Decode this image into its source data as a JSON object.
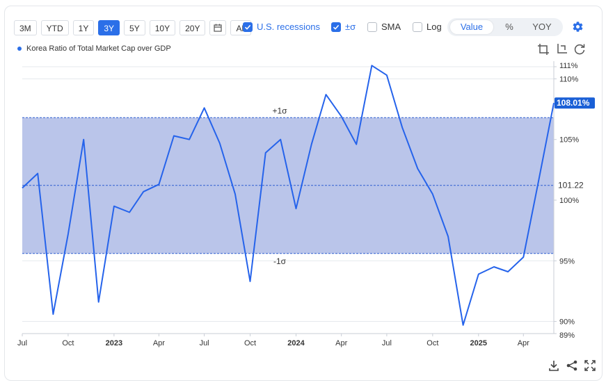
{
  "toolbar": {
    "ranges": [
      "3M",
      "YTD",
      "1Y",
      "3Y",
      "5Y",
      "10Y",
      "20Y"
    ],
    "active_range": "3Y",
    "all_label": "All",
    "calendar_icon": "calendar-icon"
  },
  "options": {
    "recessions": {
      "label": "U.S. recessions",
      "checked": true
    },
    "sigma": {
      "label": "±σ",
      "checked": true
    },
    "sma": {
      "label": "SMA",
      "checked": false
    },
    "log": {
      "label": "Log",
      "checked": false
    }
  },
  "mode": {
    "options": [
      "Value",
      "%",
      "YOY"
    ],
    "selected": "Value"
  },
  "icons": {
    "settings": "gear-icon",
    "top": [
      "crop-icon",
      "crop-alt-icon",
      "reset-icon"
    ],
    "bottom": [
      "download-icon",
      "share-icon",
      "fullscreen-icon"
    ]
  },
  "legend": {
    "series_name": "Korea Ratio of Total Market Cap over GDP"
  },
  "chart_data": {
    "type": "line",
    "series": [
      {
        "name": "Korea Ratio of Total Market Cap over GDP",
        "color": "#2563eb",
        "points": [
          [
            "2022-07-01",
            101.0
          ],
          [
            "2022-08-01",
            102.2
          ],
          [
            "2022-09-01",
            90.6
          ],
          [
            "2022-10-01",
            97.2
          ],
          [
            "2022-11-01",
            105.0
          ],
          [
            "2022-12-01",
            91.6
          ],
          [
            "2023-01-01",
            99.5
          ],
          [
            "2023-02-01",
            99.0
          ],
          [
            "2023-03-01",
            100.7
          ],
          [
            "2023-04-01",
            101.3
          ],
          [
            "2023-05-01",
            105.3
          ],
          [
            "2023-06-01",
            105.0
          ],
          [
            "2023-07-01",
            107.6
          ],
          [
            "2023-08-01",
            104.7
          ],
          [
            "2023-09-01",
            100.5
          ],
          [
            "2023-10-01",
            93.3
          ],
          [
            "2023-11-01",
            103.9
          ],
          [
            "2023-12-01",
            105.0
          ],
          [
            "2024-01-01",
            99.3
          ],
          [
            "2024-02-01",
            104.6
          ],
          [
            "2024-03-01",
            108.7
          ],
          [
            "2024-04-01",
            106.9
          ],
          [
            "2024-05-01",
            104.6
          ],
          [
            "2024-06-01",
            111.1
          ],
          [
            "2024-07-01",
            110.3
          ],
          [
            "2024-08-01",
            106.0
          ],
          [
            "2024-09-01",
            102.6
          ],
          [
            "2024-10-01",
            100.5
          ],
          [
            "2024-11-01",
            97.0
          ],
          [
            "2024-12-01",
            89.7
          ],
          [
            "2025-01-01",
            93.9
          ],
          [
            "2025-02-01",
            94.5
          ],
          [
            "2025-03-01",
            94.1
          ],
          [
            "2025-04-01",
            95.3
          ],
          [
            "2025-05-01",
            101.5
          ],
          [
            "2025-06-01",
            108.01
          ]
        ]
      }
    ],
    "ylim": [
      89,
      111
    ],
    "y_ticks": [
      90,
      95,
      100,
      105,
      110
    ],
    "y_tick_labels": [
      "90%",
      "95%",
      "100%",
      "105%",
      "110%"
    ],
    "y_min_label": "89%",
    "y_max_label": "111%",
    "x_ticks": [
      {
        "date": "2022-07-01",
        "label": "Jul",
        "bold": false
      },
      {
        "date": "2022-10-01",
        "label": "Oct",
        "bold": false
      },
      {
        "date": "2023-01-01",
        "label": "2023",
        "bold": true
      },
      {
        "date": "2023-04-01",
        "label": "Apr",
        "bold": false
      },
      {
        "date": "2023-07-01",
        "label": "Jul",
        "bold": false
      },
      {
        "date": "2023-10-01",
        "label": "Oct",
        "bold": false
      },
      {
        "date": "2024-01-01",
        "label": "2024",
        "bold": true
      },
      {
        "date": "2024-04-01",
        "label": "Apr",
        "bold": false
      },
      {
        "date": "2024-07-01",
        "label": "Jul",
        "bold": false
      },
      {
        "date": "2024-10-01",
        "label": "Oct",
        "bold": false
      },
      {
        "date": "2025-01-01",
        "label": "2025",
        "bold": true
      },
      {
        "date": "2025-04-01",
        "label": "Apr",
        "bold": false
      }
    ],
    "mean": 101.22,
    "mean_label": "101.22",
    "plus_sigma": 106.8,
    "plus_sigma_label": "+1σ",
    "minus_sigma": 95.6,
    "minus_sigma_label": "-1σ",
    "band_color": "#bac5ea",
    "last_value_label": "108.01%",
    "grid": true
  }
}
